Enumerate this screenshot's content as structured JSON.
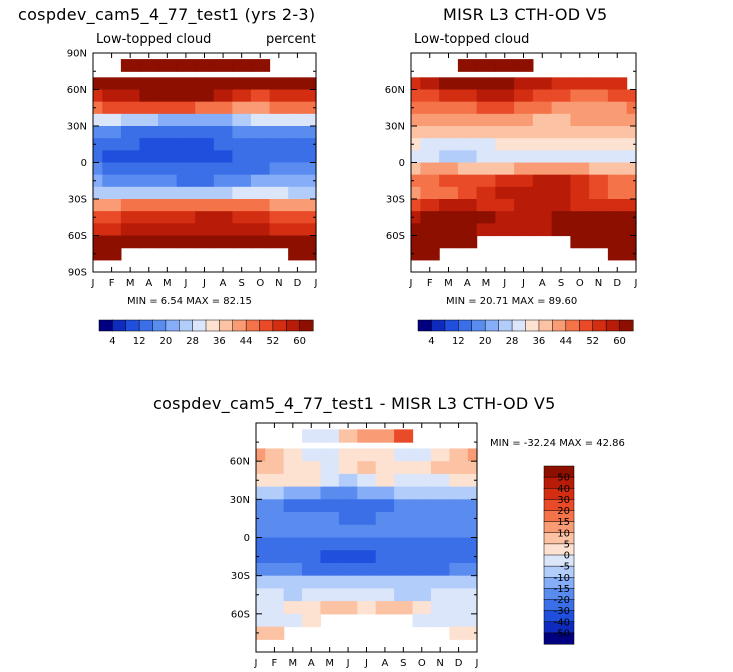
{
  "chart_data": [
    {
      "type": "heatmap",
      "id": "model",
      "title": "cospdev_cam5_4_77_test1 (yrs 2-3)",
      "subtitle_left": "Low-topped cloud",
      "subtitle_right": "percent",
      "x_tick_labels": [
        "J",
        "F",
        "M",
        "A",
        "M",
        "J",
        "J",
        "A",
        "S",
        "O",
        "N",
        "D",
        "J"
      ],
      "y_tick_labels": [
        "90N",
        "60N",
        "30N",
        "0",
        "30S",
        "60S",
        "90S"
      ],
      "y_tick_values": [
        90,
        60,
        30,
        0,
        -30,
        -60,
        -90
      ],
      "ylim": [
        -90,
        90
      ],
      "stats": "MIN =    6.54 MAX =   82.15",
      "min": 6.54,
      "max": 82.15,
      "lat_rows": [
        80,
        65,
        55,
        45,
        35,
        25,
        15,
        5,
        -5,
        -15,
        -25,
        -35,
        -45,
        -55,
        -65,
        -75
      ],
      "values": [
        [
          null,
          null,
          82,
          82,
          82,
          82,
          82,
          82,
          82,
          82,
          null,
          null,
          null
        ],
        [
          62,
          64,
          66,
          68,
          68,
          66,
          66,
          64,
          62,
          60,
          60,
          62,
          62
        ],
        [
          52,
          56,
          58,
          60,
          60,
          62,
          60,
          56,
          52,
          50,
          52,
          54,
          52
        ],
        [
          46,
          48,
          50,
          50,
          48,
          48,
          46,
          44,
          42,
          42,
          44,
          46,
          46
        ],
        [
          28,
          28,
          26,
          24,
          22,
          20,
          20,
          22,
          26,
          28,
          30,
          30,
          28
        ],
        [
          18,
          16,
          14,
          14,
          12,
          12,
          12,
          14,
          16,
          18,
          18,
          18,
          18
        ],
        [
          14,
          12,
          12,
          10,
          10,
          10,
          10,
          12,
          12,
          14,
          14,
          14,
          14
        ],
        [
          12,
          10,
          10,
          8,
          8,
          10,
          10,
          10,
          12,
          12,
          12,
          12,
          12
        ],
        [
          16,
          14,
          14,
          12,
          12,
          12,
          12,
          12,
          14,
          14,
          16,
          16,
          16
        ],
        [
          20,
          18,
          18,
          16,
          16,
          14,
          14,
          16,
          18,
          20,
          20,
          20,
          20
        ],
        [
          26,
          26,
          26,
          24,
          24,
          24,
          24,
          26,
          28,
          28,
          28,
          26,
          26
        ],
        [
          42,
          42,
          44,
          44,
          44,
          46,
          46,
          46,
          44,
          44,
          42,
          42,
          42
        ],
        [
          48,
          50,
          52,
          52,
          54,
          54,
          56,
          56,
          54,
          52,
          50,
          48,
          48
        ],
        [
          52,
          54,
          56,
          56,
          56,
          58,
          58,
          58,
          56,
          56,
          54,
          52,
          52
        ],
        [
          66,
          68,
          66,
          64,
          62,
          64,
          66,
          68,
          68,
          66,
          66,
          66,
          66
        ],
        [
          78,
          80,
          null,
          null,
          null,
          null,
          null,
          null,
          null,
          null,
          null,
          76,
          78
        ]
      ],
      "colorbar_labels": [
        "4",
        "12",
        "20",
        "28",
        "36",
        "44",
        "52",
        "60"
      ]
    },
    {
      "type": "heatmap",
      "id": "obs",
      "title": "MISR L3 CTH-OD V5",
      "subtitle_left": "Low-topped cloud",
      "x_tick_labels": [
        "J",
        "F",
        "M",
        "A",
        "M",
        "J",
        "J",
        "A",
        "S",
        "O",
        "N",
        "D",
        "J"
      ],
      "y_tick_labels": [
        "60N",
        "30N",
        "0",
        "30S",
        "60S"
      ],
      "y_tick_values": [
        60,
        30,
        0,
        -30,
        -60
      ],
      "ylim": [
        -90,
        90
      ],
      "stats": "MIN =   20.71 MAX =   89.60",
      "min": 20.71,
      "max": 89.6,
      "lat_rows": [
        80,
        65,
        55,
        45,
        35,
        25,
        15,
        5,
        -5,
        -15,
        -25,
        -35,
        -45,
        -55,
        -65,
        -75
      ],
      "values": [
        [
          null,
          null,
          null,
          82,
          86,
          84,
          80,
          null,
          null,
          null,
          null,
          null,
          null
        ],
        [
          52,
          56,
          60,
          62,
          62,
          60,
          58,
          56,
          54,
          54,
          52,
          52,
          null
        ],
        [
          48,
          50,
          52,
          54,
          56,
          56,
          52,
          50,
          48,
          46,
          46,
          48,
          48
        ],
        [
          44,
          44,
          46,
          46,
          48,
          48,
          46,
          44,
          42,
          42,
          42,
          42,
          44
        ],
        [
          40,
          40,
          40,
          42,
          42,
          40,
          40,
          38,
          38,
          40,
          40,
          40,
          40
        ],
        [
          36,
          36,
          36,
          38,
          38,
          38,
          36,
          36,
          36,
          36,
          36,
          36,
          36
        ],
        [
          32,
          30,
          30,
          30,
          30,
          32,
          32,
          32,
          32,
          32,
          32,
          32,
          32
        ],
        [
          30,
          28,
          26,
          26,
          28,
          30,
          30,
          30,
          30,
          30,
          30,
          30,
          30
        ],
        [
          38,
          40,
          40,
          38,
          38,
          38,
          40,
          42,
          42,
          40,
          38,
          38,
          38
        ],
        [
          44,
          46,
          48,
          48,
          50,
          52,
          54,
          56,
          56,
          52,
          48,
          46,
          44
        ],
        [
          42,
          44,
          46,
          48,
          52,
          56,
          58,
          58,
          56,
          52,
          48,
          46,
          44
        ],
        [
          50,
          54,
          56,
          56,
          54,
          54,
          56,
          58,
          56,
          54,
          54,
          54,
          52
        ],
        [
          58,
          60,
          62,
          62,
          60,
          58,
          58,
          58,
          60,
          62,
          62,
          62,
          60
        ],
        [
          62,
          64,
          66,
          62,
          58,
          56,
          56,
          58,
          60,
          64,
          66,
          68,
          66
        ],
        [
          70,
          72,
          74,
          72,
          null,
          null,
          null,
          null,
          null,
          70,
          74,
          76,
          74
        ],
        [
          78,
          80,
          null,
          null,
          null,
          null,
          null,
          null,
          null,
          null,
          null,
          82,
          80
        ]
      ],
      "colorbar_labels": [
        "4",
        "12",
        "20",
        "28",
        "36",
        "44",
        "52",
        "60"
      ]
    },
    {
      "type": "heatmap",
      "id": "diff",
      "title": "cospdev_cam5_4_77_test1 - MISR L3 CTH-OD V5",
      "x_tick_labels": [
        "J",
        "F",
        "M",
        "A",
        "M",
        "J",
        "J",
        "A",
        "S",
        "O",
        "N",
        "D",
        "J"
      ],
      "y_tick_labels": [
        "60N",
        "30N",
        "0",
        "30S",
        "60S"
      ],
      "y_tick_values": [
        60,
        30,
        0,
        -30,
        -60
      ],
      "ylim": [
        -90,
        90
      ],
      "stats": "MIN =  -32.24 MAX =   42.86",
      "min": -32.24,
      "max": 42.86,
      "lat_rows": [
        80,
        65,
        55,
        45,
        35,
        25,
        15,
        5,
        -5,
        -15,
        -25,
        -35,
        -45,
        -55,
        -65,
        -75
      ],
      "values": [
        [
          null,
          null,
          null,
          -5,
          -2,
          8,
          10,
          12,
          20,
          null,
          null,
          null,
          null
        ],
        [
          12,
          6,
          2,
          -4,
          -2,
          0,
          4,
          2,
          -2,
          -4,
          2,
          6,
          12
        ],
        [
          6,
          8,
          4,
          2,
          -2,
          2,
          6,
          4,
          2,
          4,
          6,
          8,
          6
        ],
        [
          4,
          2,
          2,
          0,
          -4,
          -6,
          -2,
          0,
          -2,
          -2,
          -2,
          2,
          4
        ],
        [
          -8,
          -10,
          -12,
          -14,
          -16,
          -16,
          -14,
          -12,
          -10,
          -10,
          -8,
          -8,
          -8
        ],
        [
          -18,
          -20,
          -22,
          -22,
          -24,
          -24,
          -22,
          -22,
          -20,
          -20,
          -18,
          -18,
          -18
        ],
        [
          -18,
          -20,
          -18,
          -20,
          -20,
          -22,
          -22,
          -20,
          -20,
          -18,
          -18,
          -18,
          -18
        ],
        [
          -16,
          -18,
          -18,
          -20,
          -20,
          -20,
          -20,
          -18,
          -18,
          -18,
          -16,
          -16,
          -16
        ],
        [
          -22,
          -24,
          -26,
          -26,
          -26,
          -26,
          -26,
          -26,
          -28,
          -26,
          -24,
          -22,
          -22
        ],
        [
          -24,
          -26,
          -28,
          -30,
          -32,
          -32,
          -32,
          -30,
          -30,
          -28,
          -26,
          -24,
          -24
        ],
        [
          -18,
          -18,
          -20,
          -22,
          -24,
          -26,
          -28,
          -28,
          -28,
          -26,
          -22,
          -20,
          -18
        ],
        [
          -8,
          -10,
          -10,
          -10,
          -8,
          -6,
          -6,
          -8,
          -10,
          -10,
          -10,
          -8,
          -8
        ],
        [
          -4,
          -4,
          -6,
          -4,
          -2,
          -2,
          -2,
          -4,
          -6,
          -6,
          -4,
          -4,
          -4
        ],
        [
          -2,
          -2,
          2,
          4,
          8,
          6,
          4,
          6,
          8,
          2,
          -2,
          -4,
          -2
        ],
        [
          -4,
          -2,
          -2,
          2,
          null,
          null,
          null,
          null,
          null,
          -2,
          -2,
          -2,
          -4
        ],
        [
          6,
          8,
          null,
          null,
          null,
          null,
          null,
          null,
          null,
          null,
          null,
          4,
          4
        ]
      ],
      "colorbar_labels": [
        "50",
        "40",
        "30",
        "20",
        "15",
        "10",
        "5",
        "0",
        "-5",
        "-10",
        "-15",
        "-20",
        "-30",
        "-40",
        "-50"
      ]
    }
  ],
  "palette": {
    "absolute": [
      "#000080",
      "#0f2bbd",
      "#1f4fdc",
      "#3a6fe8",
      "#5a8cf0",
      "#86adf7",
      "#b3cdfb",
      "#dbe6fb",
      "#fde2d2",
      "#fcc2a4",
      "#f99b74",
      "#f47348",
      "#e94a27",
      "#d32d12",
      "#b81b08",
      "#8c0f00"
    ],
    "diff": [
      "#8c0f00",
      "#b81b08",
      "#d32d12",
      "#e94a27",
      "#f47348",
      "#f99b74",
      "#fcc2a4",
      "#fde2d2",
      "#dbe6fb",
      "#b3cdfb",
      "#86adf7",
      "#5a8cf0",
      "#3a6fe8",
      "#1f4fdc",
      "#0f2bbd",
      "#000080"
    ],
    "axis": "#000000",
    "missing": "#ffffff"
  }
}
